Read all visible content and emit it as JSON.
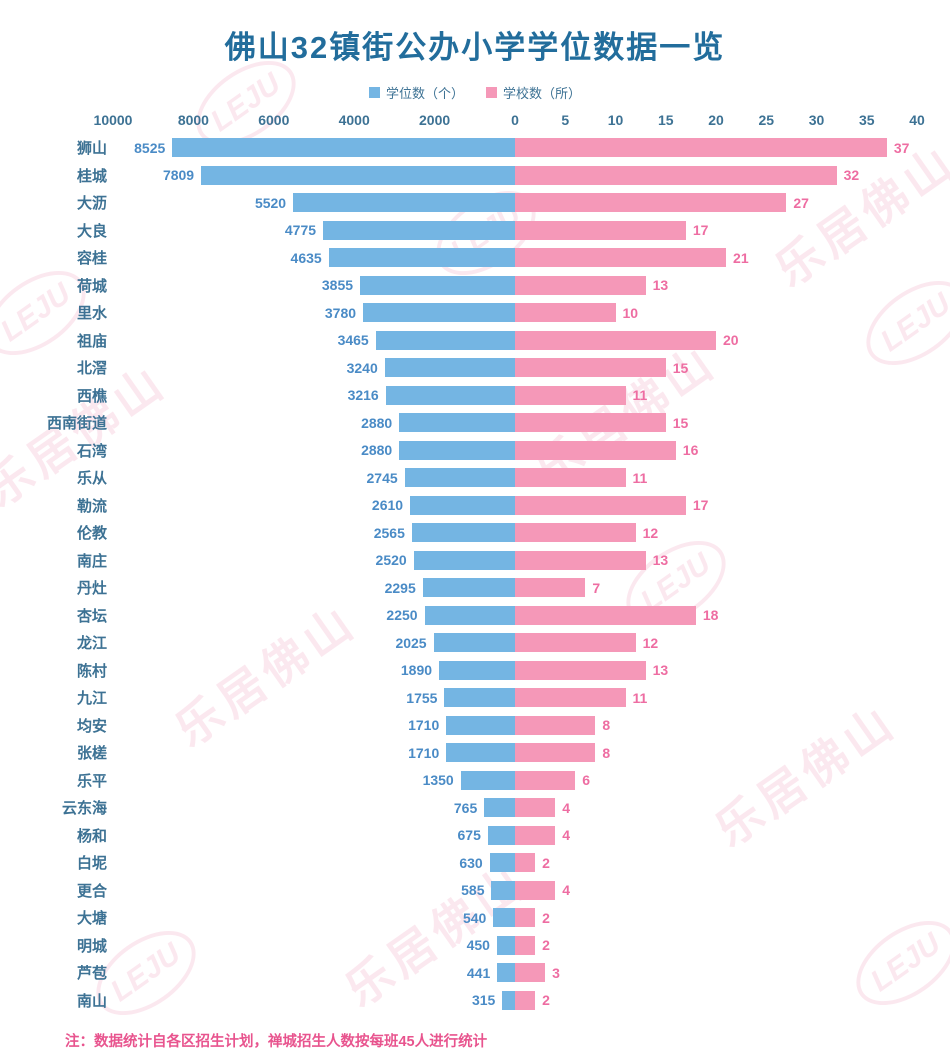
{
  "page": {
    "title": "佛山32镇街公办小学学位数据一览",
    "note": "注：数据统计自各区招生计划，禅城招生人数按每班45人进行统计",
    "watermark_text": "乐居佛山",
    "watermark_logo": "LEJU"
  },
  "legend": {
    "seats_label": "学位数（个）",
    "schools_label": "学校数（所）"
  },
  "colors": {
    "seats_bar": "#74b5e3",
    "schools_bar": "#f598b8",
    "seats_value": "#4a8bc6",
    "schools_value": "#ee6da2",
    "title": "#226d9c",
    "axis_text": "#3d7294",
    "note": "#e8548e",
    "watermark": "#f8d6e2"
  },
  "chart_data": {
    "type": "bar",
    "orientation": "diverging-horizontal",
    "title": "佛山32镇街公办小学学位数据一览",
    "center_tick": "0",
    "categories": [
      "狮山",
      "桂城",
      "大沥",
      "大良",
      "容桂",
      "荷城",
      "里水",
      "祖庙",
      "北滘",
      "西樵",
      "西南街道",
      "石湾",
      "乐从",
      "勒流",
      "伦教",
      "南庄",
      "丹灶",
      "杏坛",
      "龙江",
      "陈村",
      "九江",
      "均安",
      "张槎",
      "乐平",
      "云东海",
      "杨和",
      "白坭",
      "更合",
      "大塘",
      "明城",
      "芦苞",
      "南山"
    ],
    "series": [
      {
        "name": "学位数（个）",
        "side": "left",
        "axis_max": 10000,
        "ticks": [
          10000,
          8000,
          6000,
          4000,
          2000
        ],
        "color": "#74b5e3",
        "values": [
          8525,
          7809,
          5520,
          4775,
          4635,
          3855,
          3780,
          3465,
          3240,
          3216,
          2880,
          2880,
          2745,
          2610,
          2565,
          2520,
          2295,
          2250,
          2025,
          1890,
          1755,
          1710,
          1710,
          1350,
          765,
          675,
          630,
          585,
          540,
          450,
          441,
          315
        ]
      },
      {
        "name": "学校数（所）",
        "side": "right",
        "axis_max": 40,
        "ticks": [
          5,
          10,
          15,
          20,
          25,
          30,
          35,
          40
        ],
        "color": "#f598b8",
        "values": [
          37,
          32,
          27,
          17,
          21,
          13,
          10,
          20,
          15,
          11,
          15,
          16,
          11,
          17,
          12,
          13,
          7,
          18,
          12,
          13,
          11,
          8,
          8,
          6,
          4,
          4,
          2,
          4,
          2,
          2,
          3,
          2
        ]
      }
    ]
  }
}
